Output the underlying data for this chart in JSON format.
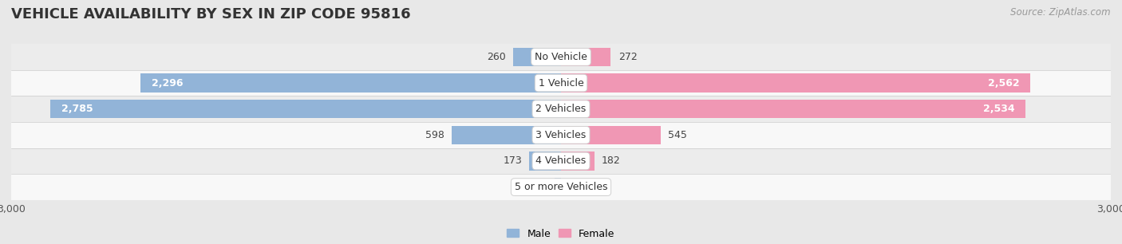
{
  "title": "VEHICLE AVAILABILITY BY SEX IN ZIP CODE 95816",
  "source": "Source: ZipAtlas.com",
  "categories": [
    "No Vehicle",
    "1 Vehicle",
    "2 Vehicles",
    "3 Vehicles",
    "4 Vehicles",
    "5 or more Vehicles"
  ],
  "male_values": [
    260,
    2296,
    2785,
    598,
    173,
    34
  ],
  "female_values": [
    272,
    2562,
    2534,
    545,
    182,
    0
  ],
  "male_color": "#92b4d8",
  "female_color": "#f097b4",
  "male_label": "Male",
  "female_label": "Female",
  "xlim": 3000,
  "bar_height": 0.72,
  "bg_color": "#e8e8e8",
  "row_colors": [
    "#ececec",
    "#f8f8f8",
    "#ececec",
    "#f8f8f8",
    "#ececec",
    "#f8f8f8"
  ],
  "title_fontsize": 13,
  "value_fontsize": 9,
  "cat_fontsize": 9,
  "tick_fontsize": 9,
  "source_fontsize": 8.5,
  "legend_fontsize": 9
}
